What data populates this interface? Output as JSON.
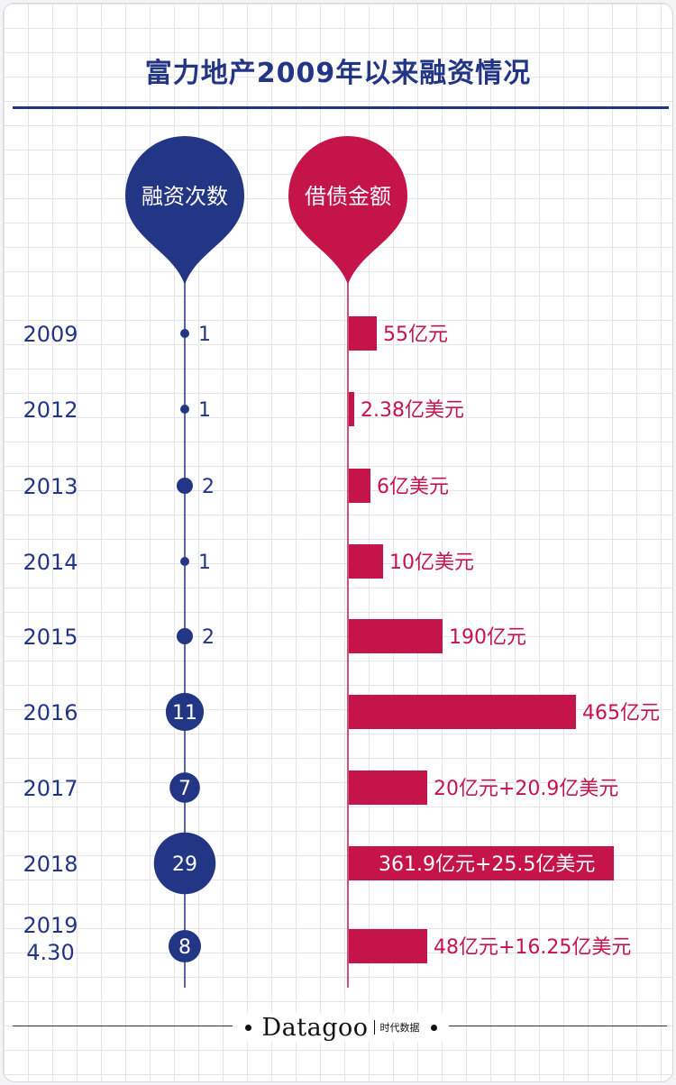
{
  "title": "富力地产2009年以来融资情况",
  "colors": {
    "navy": "#233585",
    "crimson": "#c4144a",
    "grid": "#e4e4ea"
  },
  "footer": {
    "brand": "Datagoo",
    "sub": "时代数据"
  },
  "chart_data": {
    "type": "bar",
    "series": [
      {
        "name": "融资次数",
        "kind": "bubble",
        "values": [
          1,
          1,
          2,
          1,
          2,
          11,
          7,
          29,
          8
        ]
      },
      {
        "name": "借债金额",
        "kind": "bar",
        "labels": [
          "55亿元",
          "2.38亿美元",
          "6亿美元",
          "10亿美元",
          "190亿元",
          "465亿元",
          "20亿元+20.9亿美元",
          "361.9亿元+25.5亿美元",
          "48亿元+16.25亿美元"
        ]
      }
    ],
    "categories": [
      [
        "2009"
      ],
      [
        "2012"
      ],
      [
        "2013"
      ],
      [
        "2014"
      ],
      [
        "2015"
      ],
      [
        "2016"
      ],
      [
        "2017"
      ],
      [
        "2018"
      ],
      [
        "2019",
        "4.30"
      ]
    ]
  }
}
